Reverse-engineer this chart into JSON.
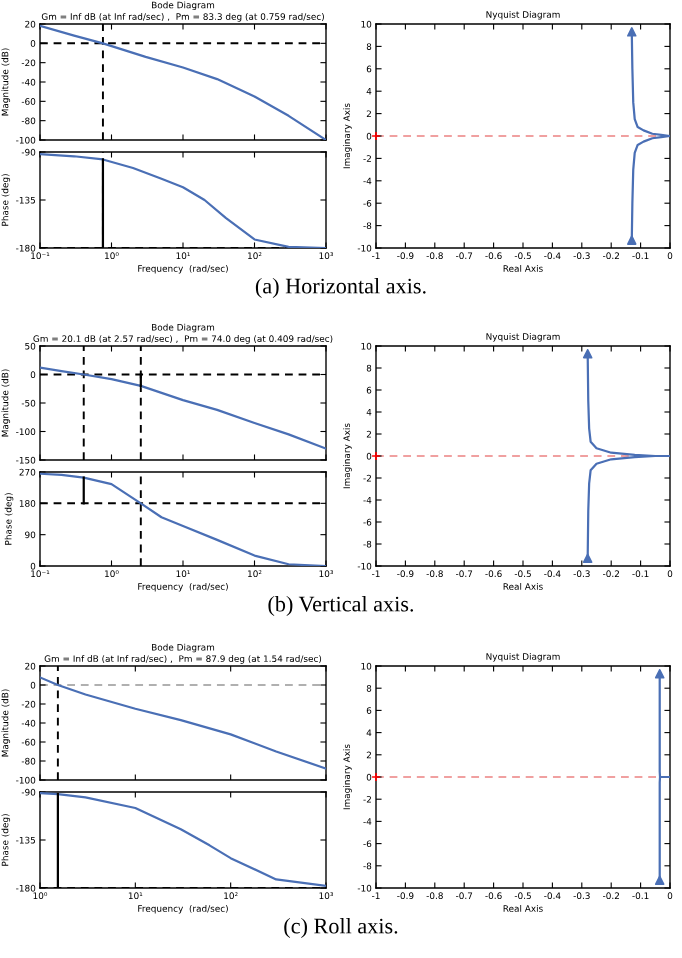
{
  "chart_data": [
    {
      "type": "line",
      "title": "Bode Diagram",
      "subtitle": "Gm = Inf dB (at Inf rad/sec) ,  Pm = 83.3 deg (at 0.759 rad/sec)",
      "ylabel": "Magnitude (dB)",
      "log": "x",
      "xlim": [
        0.1,
        1000
      ],
      "xticks": [
        {
          "value": 0.1,
          "label": null
        },
        {
          "value": 1,
          "label": null
        },
        {
          "value": 10,
          "label": null
        },
        {
          "value": 100,
          "label": null
        },
        {
          "value": 1000,
          "label": null
        }
      ],
      "ylim": [
        -100,
        20
      ],
      "yticks": [
        -100,
        -80,
        -60,
        -40,
        -20,
        0,
        20
      ],
      "tick_labels": "y",
      "series": [
        {
          "color": "#4a6fb5",
          "x": [
            0.1,
            0.3,
            0.759,
            3,
            10,
            30,
            100,
            300,
            1000
          ],
          "values": [
            18,
            8,
            0,
            -14,
            -25,
            -37,
            -55,
            -75,
            -100
          ]
        }
      ],
      "ref_lines": [
        {
          "axis": "y",
          "value": 0,
          "color": "#000000",
          "line_style": "dashed"
        },
        {
          "axis": "x",
          "value": 0.759,
          "color": "#000000",
          "line_style": "dashed"
        }
      ]
    },
    {
      "type": "line",
      "ylabel": "Phase (deg)",
      "xlabel": "Frequency  (rad/sec)",
      "log": "x",
      "xlim": [
        0.1,
        1000
      ],
      "xticks": [
        {
          "value": 0.1,
          "label": "10⁻¹"
        },
        {
          "value": 1,
          "label": "10⁰"
        },
        {
          "value": 10,
          "label": "10¹"
        },
        {
          "value": 100,
          "label": "10²"
        },
        {
          "value": 1000,
          "label": "10³"
        }
      ],
      "ylim": [
        -180,
        -90
      ],
      "yticks": [
        -180,
        -135,
        -90
      ],
      "annotations": [
        "(a) Horizontal axis."
      ],
      "series": [
        {
          "color": "#4a6fb5",
          "x": [
            0.1,
            0.3,
            0.759,
            2,
            5,
            10,
            20,
            40,
            100,
            300,
            1000
          ],
          "values": [
            -92,
            -94,
            -97,
            -105,
            -115,
            -123,
            -135,
            -152,
            -172,
            -179,
            -180
          ]
        },
        {
          "color": "#000000",
          "x": [
            0.759,
            0.759
          ],
          "values": [
            -180,
            -97
          ]
        }
      ],
      "ref_lines": [
        {
          "axis": "y",
          "value": -180,
          "color": "#000000",
          "line_style": "dashed"
        },
        {
          "axis": "x",
          "value": 0.759,
          "color": "#000000",
          "line_style": "dashed"
        }
      ]
    },
    {
      "type": "line",
      "title": "Nyquist Diagram",
      "xlabel": "Real Axis",
      "ylabel": "Imaginary Axis",
      "xlim": [
        -1,
        0
      ],
      "xticks": [
        -1,
        -0.9,
        -0.8,
        -0.7,
        -0.6,
        -0.5,
        -0.4,
        -0.3,
        -0.2,
        -0.1,
        0
      ],
      "ylim": [
        -10,
        10
      ],
      "yticks": [
        -10,
        -8,
        -6,
        -4,
        -2,
        0,
        2,
        4,
        6,
        8,
        10
      ],
      "series": [
        {
          "color": "#4a6fb5",
          "x": [
            -0.13,
            -0.128,
            -0.125,
            -0.12,
            -0.11,
            -0.09,
            -0.06,
            -0.03,
            0,
            -0.03,
            -0.06,
            -0.09,
            -0.11,
            -0.12,
            -0.125,
            -0.128,
            -0.13
          ],
          "values": [
            9.3,
            6,
            3,
            1.5,
            0.8,
            0.5,
            0.2,
            0.1,
            0,
            -0.1,
            -0.2,
            -0.5,
            -0.8,
            -1.5,
            -3,
            -6,
            -9.3
          ]
        },
        {
          "type": "scatter",
          "marker": "triangle",
          "color": "#4a6fb5",
          "x": [
            -0.13,
            -0.13
          ],
          "values": [
            9.3,
            -9.3
          ]
        },
        {
          "type": "scatter",
          "marker": "cross",
          "color": "#ff0000",
          "x": [
            -1
          ],
          "values": [
            0
          ]
        }
      ],
      "ref_lines": [
        {
          "axis": "y",
          "value": 0,
          "color": "#f0a0a0",
          "line_style": "dashed"
        }
      ]
    },
    {
      "type": "line",
      "title": "Bode Diagram",
      "subtitle": "Gm = 20.1 dB (at 2.57 rad/sec) ,  Pm = 74.0 deg (at 0.409 rad/sec)",
      "ylabel": "Magnitude (dB)",
      "log": "x",
      "xlim": [
        0.1,
        1000
      ],
      "xticks": [
        {
          "value": 0.1,
          "label": null
        },
        {
          "value": 1,
          "label": null
        },
        {
          "value": 10,
          "label": null
        },
        {
          "value": 100,
          "label": null
        },
        {
          "value": 1000,
          "label": null
        }
      ],
      "ylim": [
        -150,
        50
      ],
      "yticks": [
        -150,
        -100,
        -50,
        0,
        50
      ],
      "tick_labels": "y",
      "series": [
        {
          "color": "#4a6fb5",
          "x": [
            0.1,
            0.2,
            0.409,
            1,
            2.57,
            10,
            30,
            100,
            300,
            1000
          ],
          "values": [
            12,
            6,
            0,
            -8,
            -20,
            -45,
            -62,
            -85,
            -105,
            -130
          ]
        },
        {
          "color": "#000000",
          "x": [
            2.57,
            2.57
          ],
          "values": [
            0,
            -20
          ]
        }
      ],
      "ref_lines": [
        {
          "axis": "y",
          "value": 0,
          "color": "#000000",
          "line_style": "dashed"
        },
        {
          "axis": "x",
          "value": 0.409,
          "color": "#000000",
          "line_style": "dashed"
        },
        {
          "axis": "x",
          "value": 2.57,
          "color": "#000000",
          "line_style": "dashed"
        }
      ]
    },
    {
      "type": "line",
      "ylabel": "Phase (deg)",
      "xlabel": "Frequency  (rad/sec)",
      "log": "x",
      "xlim": [
        0.1,
        1000
      ],
      "xticks": [
        {
          "value": 0.1,
          "label": "10⁻¹"
        },
        {
          "value": 1,
          "label": "10⁰"
        },
        {
          "value": 10,
          "label": "10¹"
        },
        {
          "value": 100,
          "label": "10²"
        },
        {
          "value": 1000,
          "label": "10³"
        }
      ],
      "ylim": [
        0,
        270
      ],
      "yticks": [
        0,
        90,
        180,
        270
      ],
      "annotations": [
        "(b) Vertical axis."
      ],
      "series": [
        {
          "color": "#4a6fb5",
          "x": [
            0.1,
            0.2,
            0.409,
            1,
            2.57,
            5,
            10,
            30,
            100,
            300,
            1000
          ],
          "values": [
            265,
            262,
            254,
            235,
            180,
            140,
            115,
            75,
            30,
            5,
            0
          ]
        },
        {
          "color": "#000000",
          "x": [
            0.409,
            0.409
          ],
          "values": [
            180,
            254
          ]
        }
      ],
      "ref_lines": [
        {
          "axis": "y",
          "value": 180,
          "color": "#000000",
          "line_style": "dashed"
        },
        {
          "axis": "x",
          "value": 2.57,
          "color": "#000000",
          "line_style": "dashed"
        }
      ]
    },
    {
      "type": "line",
      "title": "Nyquist Diagram",
      "xlabel": "Real Axis",
      "ylabel": "Imaginary Axis",
      "xlim": [
        -1,
        0
      ],
      "xticks": [
        -1,
        -0.9,
        -0.8,
        -0.7,
        -0.6,
        -0.5,
        -0.4,
        -0.3,
        -0.2,
        -0.1,
        0
      ],
      "ylim": [
        -10,
        10
      ],
      "yticks": [
        -10,
        -8,
        -6,
        -4,
        -2,
        0,
        2,
        4,
        6,
        8,
        10
      ],
      "series": [
        {
          "color": "#4a6fb5",
          "x": [
            -0.28,
            -0.278,
            -0.275,
            -0.27,
            -0.25,
            -0.2,
            -0.12,
            -0.05,
            0,
            -0.05,
            -0.12,
            -0.2,
            -0.25,
            -0.27,
            -0.275,
            -0.278,
            -0.28
          ],
          "values": [
            9.3,
            5,
            2.5,
            1.3,
            0.7,
            0.3,
            0.1,
            0,
            0,
            0,
            -0.1,
            -0.3,
            -0.7,
            -1.3,
            -2.5,
            -5,
            -9.3
          ]
        },
        {
          "type": "scatter",
          "marker": "triangle",
          "color": "#4a6fb5",
          "x": [
            -0.28,
            -0.28
          ],
          "values": [
            9.3,
            -9.3
          ]
        },
        {
          "type": "scatter",
          "marker": "cross",
          "color": "#ff0000",
          "x": [
            -1
          ],
          "values": [
            0
          ]
        }
      ],
      "ref_lines": [
        {
          "axis": "y",
          "value": 0,
          "color": "#f0a0a0",
          "line_style": "dashed"
        }
      ]
    },
    {
      "type": "line",
      "title": "Bode Diagram",
      "subtitle": "Gm = Inf dB (at Inf rad/sec) ,  Pm = 87.9 deg (at 1.54 rad/sec)",
      "ylabel": "Magnitude (dB)",
      "log": "x",
      "xlim": [
        1,
        1000
      ],
      "xticks": [
        {
          "value": 1,
          "label": null
        },
        {
          "value": 10,
          "label": null
        },
        {
          "value": 100,
          "label": null
        },
        {
          "value": 1000,
          "label": null
        }
      ],
      "ylim": [
        -100,
        20
      ],
      "yticks": [
        -100,
        -80,
        -60,
        -40,
        -20,
        0,
        20
      ],
      "tick_labels": "y",
      "series": [
        {
          "color": "#4a6fb5",
          "x": [
            1,
            1.54,
            3,
            10,
            30,
            100,
            300,
            1000
          ],
          "values": [
            8,
            0,
            -10,
            -25,
            -37,
            -52,
            -70,
            -88
          ]
        }
      ],
      "ref_lines": [
        {
          "axis": "y",
          "value": 0,
          "color": "#b0b0b0",
          "line_style": "dashed"
        },
        {
          "axis": "x",
          "value": 1.54,
          "color": "#000000",
          "line_style": "dashed"
        }
      ]
    },
    {
      "type": "line",
      "ylabel": "Phase (deg)",
      "xlabel": "Frequency  (rad/sec)",
      "log": "x",
      "xlim": [
        1,
        1000
      ],
      "xticks": [
        {
          "value": 1,
          "label": "10⁰"
        },
        {
          "value": 10,
          "label": "10¹"
        },
        {
          "value": 100,
          "label": "10²"
        },
        {
          "value": 1000,
          "label": "10³"
        }
      ],
      "ylim": [
        -180,
        -90
      ],
      "yticks": [
        -180,
        -135,
        -90
      ],
      "annotations": [
        "(c) Roll axis."
      ],
      "series": [
        {
          "color": "#4a6fb5",
          "x": [
            1,
            1.54,
            3,
            10,
            30,
            60,
            100,
            300,
            1000
          ],
          "values": [
            -91,
            -92,
            -95,
            -105,
            -125,
            -140,
            -152,
            -172,
            -178
          ]
        },
        {
          "color": "#000000",
          "x": [
            1.54,
            1.54
          ],
          "values": [
            -180,
            -92
          ]
        }
      ],
      "ref_lines": [
        {
          "axis": "y",
          "value": -180,
          "color": "#000000",
          "line_style": "dashed"
        }
      ]
    },
    {
      "type": "line",
      "title": "Nyquist Diagram",
      "xlabel": "Real Axis",
      "ylabel": "Imaginary Axis",
      "xlim": [
        -1,
        0
      ],
      "xticks": [
        -1,
        -0.9,
        -0.8,
        -0.7,
        -0.6,
        -0.5,
        -0.4,
        -0.3,
        -0.2,
        -0.1,
        0
      ],
      "ylim": [
        -10,
        10
      ],
      "yticks": [
        -10,
        -8,
        -6,
        -4,
        -2,
        0,
        2,
        4,
        6,
        8,
        10
      ],
      "series": [
        {
          "color": "#4a6fb5",
          "x": [
            -0.035,
            -0.035,
            -0.034,
            0,
            -0.034,
            -0.035,
            -0.035
          ],
          "values": [
            9.3,
            0.5,
            0,
            0,
            0,
            -0.5,
            -9.3
          ]
        },
        {
          "type": "scatter",
          "marker": "triangle",
          "color": "#4a6fb5",
          "x": [
            -0.035,
            -0.035
          ],
          "values": [
            9.3,
            -9.3
          ]
        },
        {
          "type": "scatter",
          "marker": "cross",
          "color": "#ff0000",
          "x": [
            -1
          ],
          "values": [
            0
          ]
        }
      ],
      "ref_lines": [
        {
          "axis": "y",
          "value": 0,
          "color": "#f0a0a0",
          "line_style": "dashed"
        }
      ]
    }
  ]
}
